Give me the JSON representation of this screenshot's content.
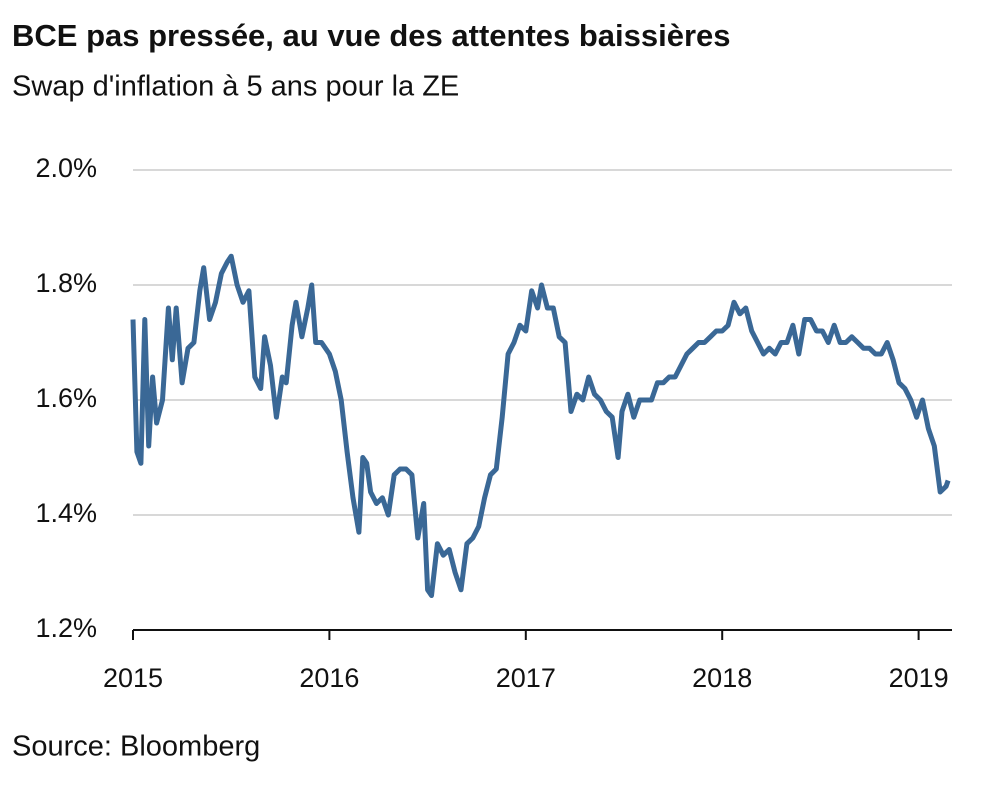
{
  "chart_data": {
    "type": "line",
    "title": "BCE pas pressée, au vue des attentes baissières",
    "subtitle": "Swap d'inflation à 5 ans pour la ZE",
    "source": "Source: Bloomberg",
    "color": "#3a6896",
    "x": [
      2015.0,
      2015.02,
      2015.04,
      2015.06,
      2015.08,
      2015.1,
      2015.12,
      2015.15,
      2015.18,
      2015.2,
      2015.22,
      2015.25,
      2015.28,
      2015.31,
      2015.34,
      2015.36,
      2015.39,
      2015.42,
      2015.45,
      2015.48,
      2015.5,
      2015.53,
      2015.56,
      2015.59,
      2015.62,
      2015.65,
      2015.67,
      2015.7,
      2015.73,
      2015.76,
      2015.78,
      2015.81,
      2015.83,
      2015.86,
      2015.89,
      2015.91,
      2015.93,
      2015.96,
      2016.0,
      2016.03,
      2016.06,
      2016.09,
      2016.12,
      2016.15,
      2016.17,
      2016.19,
      2016.21,
      2016.24,
      2016.27,
      2016.3,
      2016.33,
      2016.36,
      2016.39,
      2016.42,
      2016.45,
      2016.48,
      2016.5,
      2016.52,
      2016.55,
      2016.58,
      2016.61,
      2016.64,
      2016.67,
      2016.7,
      2016.73,
      2016.76,
      2016.79,
      2016.82,
      2016.85,
      2016.88,
      2016.91,
      2016.94,
      2016.97,
      2017.0,
      2017.03,
      2017.06,
      2017.08,
      2017.11,
      2017.14,
      2017.17,
      2017.2,
      2017.23,
      2017.26,
      2017.29,
      2017.32,
      2017.35,
      2017.38,
      2017.41,
      2017.44,
      2017.47,
      2017.49,
      2017.52,
      2017.55,
      2017.58,
      2017.61,
      2017.64,
      2017.67,
      2017.7,
      2017.73,
      2017.76,
      2017.79,
      2017.82,
      2017.85,
      2017.88,
      2017.91,
      2017.94,
      2017.97,
      2018.0,
      2018.03,
      2018.06,
      2018.09,
      2018.12,
      2018.15,
      2018.18,
      2018.21,
      2018.24,
      2018.27,
      2018.3,
      2018.33,
      2018.36,
      2018.39,
      2018.42,
      2018.45,
      2018.48,
      2018.51,
      2018.54,
      2018.57,
      2018.6,
      2018.63,
      2018.66,
      2018.69,
      2018.72,
      2018.75,
      2018.78,
      2018.81,
      2018.84,
      2018.87,
      2018.9,
      2018.93,
      2018.96,
      2018.99,
      2019.02,
      2019.05,
      2019.08,
      2019.11,
      2019.14,
      2019.15
    ],
    "values": [
      1.74,
      1.51,
      1.49,
      1.74,
      1.52,
      1.64,
      1.56,
      1.6,
      1.76,
      1.67,
      1.76,
      1.63,
      1.69,
      1.7,
      1.79,
      1.83,
      1.74,
      1.77,
      1.82,
      1.84,
      1.85,
      1.8,
      1.77,
      1.79,
      1.64,
      1.62,
      1.71,
      1.66,
      1.57,
      1.64,
      1.63,
      1.73,
      1.77,
      1.71,
      1.76,
      1.8,
      1.7,
      1.7,
      1.68,
      1.65,
      1.6,
      1.51,
      1.43,
      1.37,
      1.5,
      1.49,
      1.44,
      1.42,
      1.43,
      1.4,
      1.47,
      1.48,
      1.48,
      1.47,
      1.36,
      1.42,
      1.27,
      1.26,
      1.35,
      1.33,
      1.34,
      1.3,
      1.27,
      1.35,
      1.36,
      1.38,
      1.43,
      1.47,
      1.48,
      1.57,
      1.68,
      1.7,
      1.73,
      1.72,
      1.79,
      1.76,
      1.8,
      1.76,
      1.76,
      1.71,
      1.7,
      1.58,
      1.61,
      1.6,
      1.64,
      1.61,
      1.6,
      1.58,
      1.57,
      1.5,
      1.58,
      1.61,
      1.57,
      1.6,
      1.6,
      1.6,
      1.63,
      1.63,
      1.64,
      1.64,
      1.66,
      1.68,
      1.69,
      1.7,
      1.7,
      1.71,
      1.72,
      1.72,
      1.73,
      1.77,
      1.75,
      1.76,
      1.72,
      1.7,
      1.68,
      1.69,
      1.68,
      1.7,
      1.7,
      1.73,
      1.68,
      1.74,
      1.74,
      1.72,
      1.72,
      1.7,
      1.73,
      1.7,
      1.7,
      1.71,
      1.7,
      1.69,
      1.69,
      1.68,
      1.68,
      1.7,
      1.67,
      1.63,
      1.62,
      1.6,
      1.57,
      1.6,
      1.55,
      1.52,
      1.44,
      1.45,
      1.46
    ],
    "xlim": [
      2015,
      2019.17
    ],
    "xticks": [
      2015,
      2016,
      2017,
      2018,
      2019
    ],
    "ylim": [
      1.2,
      2.0
    ],
    "yticks": [
      {
        "value": 1.2,
        "label": "1.2%"
      },
      {
        "value": 1.4,
        "label": "1.4%"
      },
      {
        "value": 1.6,
        "label": "1.6%"
      },
      {
        "value": 1.8,
        "label": "1.8%"
      },
      {
        "value": 2.0,
        "label": "2.0%"
      }
    ],
    "grid": true
  }
}
